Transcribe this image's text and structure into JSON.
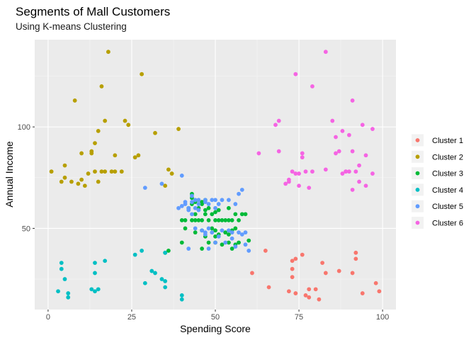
{
  "chart_data": {
    "type": "scatter",
    "title": "Segments of Mall Customers",
    "subtitle": "Using K-means Clustering",
    "xlabel": "Spending Score",
    "ylabel": "Annual Income",
    "xlim": [
      -4,
      104
    ],
    "ylim": [
      10,
      143
    ],
    "x_ticks": [
      0,
      25,
      50,
      75,
      100
    ],
    "y_ticks": [
      50,
      100
    ],
    "grid": true,
    "legend_position": "right",
    "series": [
      {
        "name": "Cluster 1",
        "color": "#F8766D",
        "points": [
          [
            61,
            28
          ],
          [
            65,
            39
          ],
          [
            66,
            21
          ],
          [
            72,
            19
          ],
          [
            73,
            34
          ],
          [
            73,
            30
          ],
          [
            73,
            26
          ],
          [
            74,
            35
          ],
          [
            74,
            18
          ],
          [
            76,
            37
          ],
          [
            77,
            17
          ],
          [
            78,
            20
          ],
          [
            78,
            16
          ],
          [
            80,
            20
          ],
          [
            81,
            15
          ],
          [
            82,
            33
          ],
          [
            83,
            28
          ],
          [
            87,
            29
          ],
          [
            91,
            28
          ],
          [
            92,
            38
          ],
          [
            92,
            35
          ],
          [
            94,
            18
          ],
          [
            98,
            23
          ],
          [
            99,
            19
          ]
        ]
      },
      {
        "name": "Cluster 2",
        "color": "#B79F00",
        "points": [
          [
            1,
            78
          ],
          [
            4,
            73
          ],
          [
            5,
            75
          ],
          [
            5,
            81
          ],
          [
            7,
            73
          ],
          [
            8,
            113
          ],
          [
            9,
            72
          ],
          [
            10,
            74
          ],
          [
            10,
            87
          ],
          [
            11,
            71
          ],
          [
            12,
            77
          ],
          [
            13,
            87
          ],
          [
            13,
            88
          ],
          [
            14,
            92
          ],
          [
            14,
            78
          ],
          [
            15,
            73
          ],
          [
            15,
            98
          ],
          [
            16,
            120
          ],
          [
            16,
            78
          ],
          [
            17,
            78
          ],
          [
            17,
            103
          ],
          [
            18,
            137
          ],
          [
            19,
            78
          ],
          [
            20,
            86
          ],
          [
            20,
            78
          ],
          [
            22,
            78
          ],
          [
            23,
            103
          ],
          [
            24,
            101
          ],
          [
            26,
            85
          ],
          [
            27,
            86
          ],
          [
            28,
            126
          ],
          [
            32,
            97
          ],
          [
            35,
            71
          ],
          [
            36,
            79
          ],
          [
            37,
            77
          ],
          [
            39,
            99
          ]
        ]
      },
      {
        "name": "Cluster 3",
        "color": "#00BA38",
        "points": [
          [
            35,
            38
          ],
          [
            36,
            39
          ],
          [
            40,
            43
          ],
          [
            40,
            54
          ],
          [
            41,
            50
          ],
          [
            41,
            54
          ],
          [
            42,
            60
          ],
          [
            43,
            54
          ],
          [
            43,
            62
          ],
          [
            43,
            65
          ],
          [
            43,
            67
          ],
          [
            44,
            48
          ],
          [
            44,
            54
          ],
          [
            44,
            57
          ],
          [
            44,
            63
          ],
          [
            45,
            54
          ],
          [
            45,
            60
          ],
          [
            46,
            40
          ],
          [
            46,
            49
          ],
          [
            46,
            54
          ],
          [
            46,
            62
          ],
          [
            46,
            63
          ],
          [
            47,
            46
          ],
          [
            47,
            57
          ],
          [
            47,
            59
          ],
          [
            47,
            64
          ],
          [
            48,
            43
          ],
          [
            48,
            54
          ],
          [
            48,
            60
          ],
          [
            49,
            50
          ],
          [
            49,
            57
          ],
          [
            50,
            43
          ],
          [
            50,
            46
          ],
          [
            50,
            49
          ],
          [
            50,
            54
          ],
          [
            50,
            58
          ],
          [
            51,
            47
          ],
          [
            51,
            54
          ],
          [
            51,
            59
          ],
          [
            52,
            42
          ],
          [
            52,
            54
          ],
          [
            53,
            48
          ],
          [
            53,
            54
          ],
          [
            54,
            43
          ],
          [
            54,
            47
          ],
          [
            54,
            54
          ],
          [
            54,
            60
          ],
          [
            55,
            40
          ],
          [
            55,
            49
          ],
          [
            55,
            54
          ],
          [
            56,
            42
          ],
          [
            56,
            50
          ],
          [
            56,
            57
          ],
          [
            57,
            43
          ],
          [
            57,
            54
          ],
          [
            58,
            57
          ],
          [
            59,
            57
          ],
          [
            60,
            44
          ]
        ]
      },
      {
        "name": "Cluster 4",
        "color": "#00BFC4",
        "points": [
          [
            3,
            19
          ],
          [
            4,
            30
          ],
          [
            4,
            33
          ],
          [
            5,
            25
          ],
          [
            6,
            16
          ],
          [
            6,
            18
          ],
          [
            13,
            20
          ],
          [
            14,
            19
          ],
          [
            14,
            28
          ],
          [
            14,
            33
          ],
          [
            15,
            20
          ],
          [
            17,
            34
          ],
          [
            26,
            37
          ],
          [
            28,
            39
          ],
          [
            29,
            23
          ],
          [
            31,
            29
          ],
          [
            32,
            28
          ],
          [
            34,
            25
          ],
          [
            35,
            21
          ],
          [
            35,
            24
          ],
          [
            35,
            38
          ],
          [
            40,
            15
          ],
          [
            40,
            17
          ]
        ]
      },
      {
        "name": "Cluster 5",
        "color": "#619CFF",
        "points": [
          [
            29,
            70
          ],
          [
            34,
            72
          ],
          [
            39,
            60
          ],
          [
            40,
            76
          ],
          [
            40,
            61
          ],
          [
            41,
            62
          ],
          [
            41,
            63
          ],
          [
            42,
            40
          ],
          [
            42,
            60
          ],
          [
            42,
            59
          ],
          [
            43,
            66
          ],
          [
            43,
            63
          ],
          [
            43,
            57
          ],
          [
            44,
            50
          ],
          [
            44,
            60
          ],
          [
            44,
            64
          ],
          [
            45,
            64
          ],
          [
            45,
            62
          ],
          [
            45,
            59
          ],
          [
            46,
            49
          ],
          [
            47,
            47
          ],
          [
            47,
            48
          ],
          [
            47,
            63
          ],
          [
            47,
            64
          ],
          [
            48,
            40
          ],
          [
            48,
            50
          ],
          [
            48,
            62
          ],
          [
            49,
            64
          ],
          [
            49,
            48
          ],
          [
            50,
            43
          ],
          [
            50,
            64
          ],
          [
            50,
            60
          ],
          [
            51,
            46
          ],
          [
            51,
            62
          ],
          [
            52,
            64
          ],
          [
            52,
            49
          ],
          [
            53,
            43
          ],
          [
            54,
            49
          ],
          [
            54,
            64
          ],
          [
            55,
            48
          ],
          [
            55,
            45
          ],
          [
            56,
            41
          ],
          [
            56,
            62
          ],
          [
            57,
            67
          ],
          [
            57,
            48
          ],
          [
            58,
            69
          ],
          [
            58,
            47
          ],
          [
            59,
            48
          ],
          [
            59,
            42
          ],
          [
            60,
            39
          ]
        ]
      },
      {
        "name": "Cluster 6",
        "color": "#F564E3",
        "points": [
          [
            63,
            87
          ],
          [
            68,
            101
          ],
          [
            69,
            103
          ],
          [
            69,
            88
          ],
          [
            71,
            72
          ],
          [
            72,
            73
          ],
          [
            72,
            74
          ],
          [
            73,
            78
          ],
          [
            74,
            126
          ],
          [
            74,
            77
          ],
          [
            75,
            71
          ],
          [
            75,
            77
          ],
          [
            76,
            85
          ],
          [
            76,
            87
          ],
          [
            77,
            78
          ],
          [
            78,
            70
          ],
          [
            79,
            120
          ],
          [
            79,
            78
          ],
          [
            83,
            79
          ],
          [
            83,
            137
          ],
          [
            85,
            103
          ],
          [
            86,
            95
          ],
          [
            86,
            87
          ],
          [
            87,
            88
          ],
          [
            88,
            77
          ],
          [
            88,
            98
          ],
          [
            89,
            78
          ],
          [
            89,
            78
          ],
          [
            90,
            96
          ],
          [
            90,
            78
          ],
          [
            91,
            113
          ],
          [
            91,
            88
          ],
          [
            91,
            69
          ],
          [
            92,
            78
          ],
          [
            93,
            73
          ],
          [
            93,
            81
          ],
          [
            94,
            101
          ],
          [
            95,
            71
          ],
          [
            95,
            86
          ],
          [
            97,
            99
          ],
          [
            97,
            77
          ]
        ]
      }
    ]
  }
}
